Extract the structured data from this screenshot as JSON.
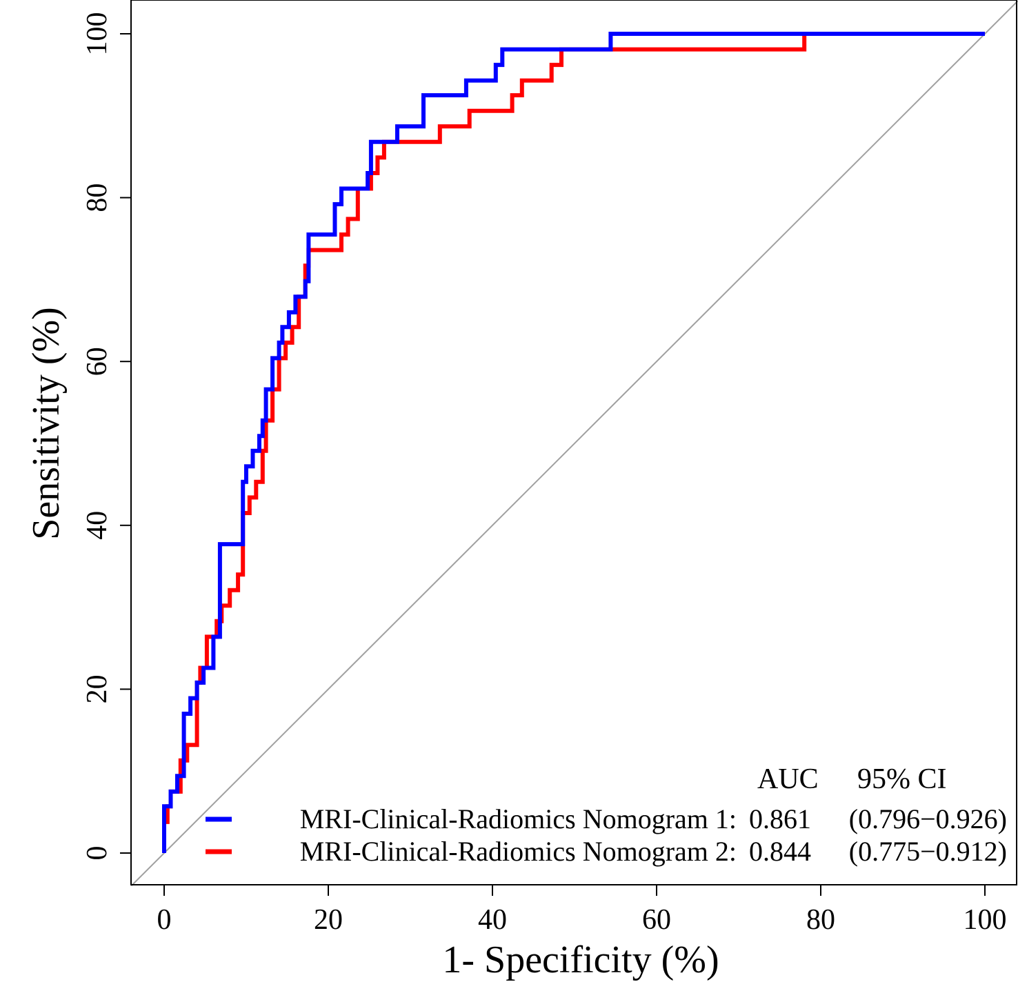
{
  "chart_data": {
    "type": "line",
    "title": "",
    "xlabel": "1- Specificity (%)",
    "ylabel": "Sensitivity (%)",
    "xlim": [
      -4,
      104
    ],
    "ylim": [
      -4,
      104
    ],
    "x_ticks": [
      0,
      20,
      40,
      60,
      80,
      100
    ],
    "y_ticks": [
      0,
      20,
      40,
      60,
      80,
      100
    ],
    "grid": false,
    "reference_line": {
      "from": [
        -4,
        -4
      ],
      "to": [
        104,
        104
      ],
      "color": "#a0a0a0"
    },
    "legend": {
      "position": "bottom-right",
      "header_auc": "AUC",
      "header_ci": "95% CI"
    },
    "series": [
      {
        "name": "MRI-Clinical-Radiomics Nomogram 1:",
        "auc": "0.861",
        "ci": "(0.796−0.926)",
        "color": "#0000ff",
        "x": [
          0,
          0,
          0.8,
          0.8,
          1.6,
          1.6,
          2.4,
          2.4,
          3.2,
          3.2,
          4,
          4,
          4.8,
          4.8,
          6,
          6,
          6.8,
          6.8,
          9.6,
          9.6,
          10,
          10,
          10.8,
          10.8,
          11.6,
          11.6,
          12,
          12,
          12.4,
          12.4,
          13.2,
          13.2,
          14,
          14,
          14.4,
          14.4,
          15.2,
          15.2,
          16,
          16,
          17.2,
          17.2,
          17.6,
          17.6,
          20.8,
          20.8,
          21.6,
          21.6,
          24.8,
          24.8,
          25.2,
          25.2,
          28.4,
          28.4,
          31.6,
          31.6,
          36.8,
          36.8,
          40.4,
          40.4,
          41.2,
          41.2,
          41.6,
          41.6,
          54.4,
          54.4,
          100
        ],
        "y": [
          0,
          5.7,
          5.7,
          7.5,
          7.5,
          9.4,
          9.4,
          17,
          17,
          18.9,
          18.9,
          20.8,
          20.8,
          22.6,
          22.6,
          26.4,
          26.4,
          37.7,
          37.7,
          45.3,
          45.3,
          47.2,
          47.2,
          49.1,
          49.1,
          50.9,
          50.9,
          52.8,
          52.8,
          56.6,
          56.6,
          60.4,
          60.4,
          62.3,
          62.3,
          64.2,
          64.2,
          66,
          66,
          67.9,
          67.9,
          69.8,
          69.8,
          75.5,
          75.5,
          79.2,
          79.2,
          81.1,
          81.1,
          83,
          83,
          86.8,
          86.8,
          88.7,
          88.7,
          92.5,
          92.5,
          94.3,
          94.3,
          96.2,
          96.2,
          98.1,
          98.1,
          98.1,
          98.1,
          100,
          100
        ]
      },
      {
        "name": "MRI-Clinical-Radiomics Nomogram 2:",
        "auc": "0.844",
        "ci": "(0.775−0.912)",
        "color": "#ff0000",
        "x": [
          0,
          0,
          0.4,
          0.4,
          0.8,
          0.8,
          2,
          2,
          2.8,
          2.8,
          4,
          4,
          4.4,
          4.4,
          5.2,
          5.2,
          6.4,
          6.4,
          7,
          7,
          8,
          8,
          9,
          9,
          9.6,
          9.6,
          10.4,
          10.4,
          11.2,
          11.2,
          12,
          12,
          12.4,
          12.4,
          13.2,
          13.2,
          14,
          14,
          14.8,
          14.8,
          15.6,
          15.6,
          16.4,
          16.4,
          17.2,
          17.2,
          17.6,
          17.6,
          21.6,
          21.6,
          22.4,
          22.4,
          23.6,
          23.6,
          25.2,
          25.2,
          26,
          26,
          26.8,
          26.8,
          27.6,
          27.6,
          33.6,
          33.6,
          37.2,
          37.2,
          42.4,
          42.4,
          43.6,
          43.6,
          47.2,
          47.2,
          48.4,
          48.4,
          49.2,
          49.2,
          78,
          78,
          100
        ],
        "y": [
          0,
          3.8,
          3.8,
          5.7,
          5.7,
          7.5,
          7.5,
          11.3,
          11.3,
          13.2,
          13.2,
          20.8,
          20.8,
          22.6,
          22.6,
          26.4,
          26.4,
          28.3,
          28.3,
          30.2,
          30.2,
          32.1,
          32.1,
          34,
          34,
          41.5,
          41.5,
          43.4,
          43.4,
          45.3,
          45.3,
          49.1,
          49.1,
          52.8,
          52.8,
          56.6,
          56.6,
          60.4,
          60.4,
          62.3,
          62.3,
          64.2,
          64.2,
          67.9,
          67.9,
          71.7,
          71.7,
          73.6,
          73.6,
          75.5,
          75.5,
          77.4,
          77.4,
          81.1,
          81.1,
          83,
          83,
          84.9,
          84.9,
          86.8,
          86.8,
          86.8,
          86.8,
          88.7,
          88.7,
          90.6,
          90.6,
          92.5,
          92.5,
          94.3,
          94.3,
          96.2,
          96.2,
          98.1,
          98.1,
          98.1,
          98.1,
          100,
          100
        ]
      }
    ]
  }
}
